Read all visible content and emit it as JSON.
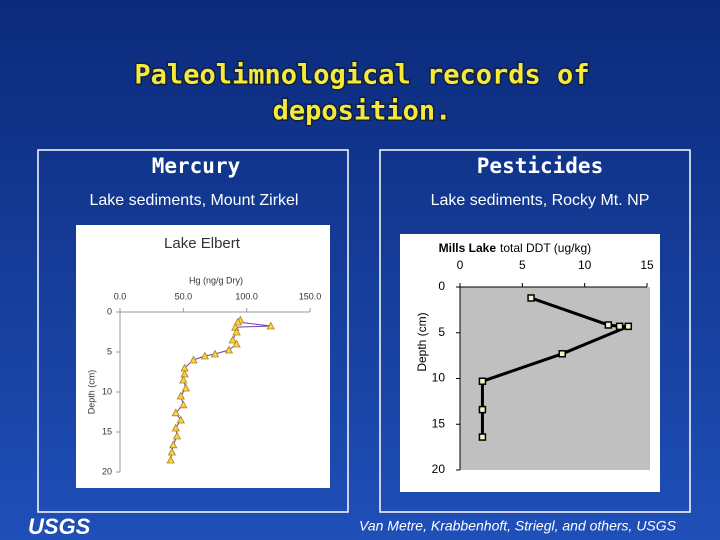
{
  "title": [
    "Paleolimnological records of",
    "deposition."
  ],
  "sections": [
    {
      "heading": "Mercury",
      "subheading": "Lake sediments, Mount Zirkel"
    },
    {
      "heading": "Pesticides",
      "subheading": "Lake sediments, Rocky Mt. NP"
    }
  ],
  "credit": "Van Metre, Krabbenhoft, Striegl, and others, USGS",
  "logo": "USGS",
  "chart_data": [
    {
      "type": "line",
      "title": "Lake Elbert",
      "x_label": "Hg (ng/g Dry)",
      "y_label": "Depth (cm)",
      "xlim": [
        0,
        150
      ],
      "xticks": [
        {
          "value": 0,
          "label": "0.0"
        },
        {
          "value": 50,
          "label": "50.0"
        },
        {
          "value": 100,
          "label": "100.0"
        },
        {
          "value": 150,
          "label": "150.0"
        }
      ],
      "ylim": [
        0,
        20
      ],
      "yticks": [
        0,
        5,
        10,
        15,
        20
      ],
      "y_inverted": true,
      "y": [
        1.0,
        1.25,
        1.75,
        1.9,
        2.5,
        3.5,
        4.0,
        4.75,
        5.25,
        5.5,
        6.0,
        7.0,
        7.75,
        8.5,
        9.5,
        10.5,
        11.6,
        12.6,
        13.5,
        14.5,
        15.5,
        16.6,
        17.5,
        18.5
      ],
      "series": [
        {
          "color": "#6a3fb0",
          "marker": "triangle",
          "marker_color": "#f2d649",
          "values": [
            95,
            93,
            119,
            91,
            92,
            89,
            92,
            86,
            75,
            67,
            58,
            51,
            51,
            50,
            52,
            48,
            50,
            44,
            48,
            44,
            45,
            42,
            41,
            40
          ]
        }
      ]
    },
    {
      "type": "line",
      "lake": "Mills Lake",
      "title": "total DDT (ug/kg)",
      "y_label": "Depth (cm)",
      "xlim": [
        0,
        15
      ],
      "xticks": [
        0,
        5,
        10,
        15
      ],
      "ylim": [
        0,
        20
      ],
      "yticks": [
        0,
        5,
        10,
        15,
        20
      ],
      "y_inverted": true,
      "y": [
        1.2,
        4.15,
        4.3,
        4.3,
        7.3,
        10.3,
        13.4,
        16.4
      ],
      "series": [
        {
          "color": "#000000",
          "marker": "square",
          "marker_color": "#f5f0c8",
          "values": [
            5.7,
            11.9,
            12.8,
            13.5,
            8.2,
            1.8,
            1.8,
            1.8
          ]
        }
      ]
    }
  ]
}
